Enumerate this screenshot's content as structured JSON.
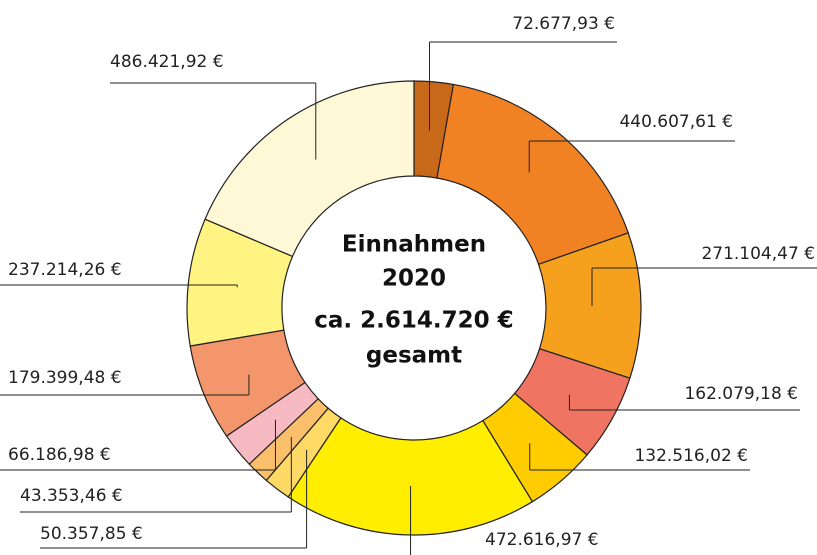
{
  "chart_data": {
    "type": "donut",
    "center_text": [
      "Einnahmen",
      "2020",
      "ca. 2.614.720 €",
      "gesamt"
    ],
    "values": [
      72677.93,
      440607.61,
      271104.47,
      162079.18,
      132516.02,
      472616.97,
      50357.85,
      43353.46,
      66186.98,
      179399.48,
      237214.26,
      486421.92
    ],
    "value_labels": [
      "72.677,93 €",
      "440.607,61 €",
      "271.104,47 €",
      "162.079,18 €",
      "132.516,02 €",
      "472.616,97 €",
      "50.357,85 €",
      "43.353,46 €",
      "66.186,98 €",
      "179.399,48 €",
      "237.214,26 €",
      "486.421,92 €"
    ],
    "colors": [
      "#c8691a",
      "#f08223",
      "#f5a11e",
      "#f07462",
      "#ffcc00",
      "#ffee00",
      "#ffd966",
      "#f9bf6a",
      "#f7b9c2",
      "#f4966c",
      "#fff481",
      "#fff8d6"
    ]
  }
}
